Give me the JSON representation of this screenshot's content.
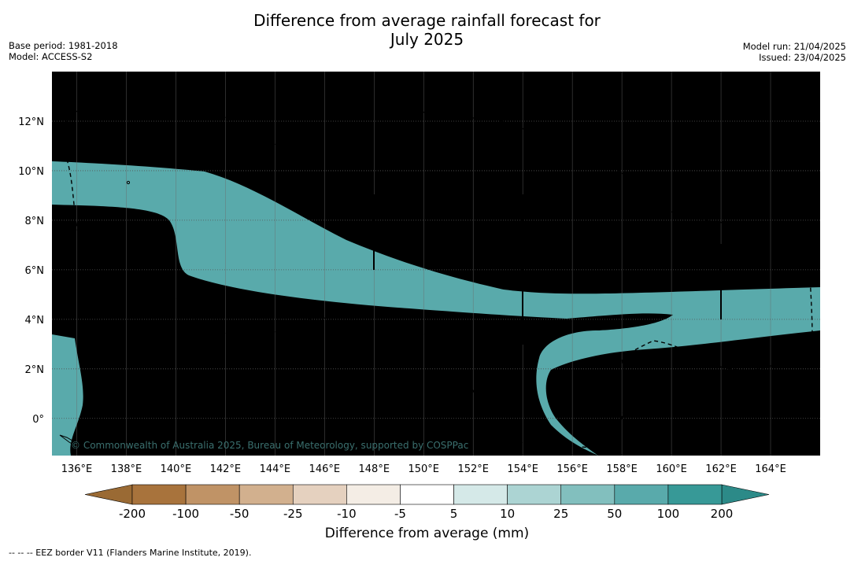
{
  "title": {
    "line1": "Difference from average rainfall forecast for",
    "line2": "July 2025"
  },
  "meta_left": {
    "base_period": "Base period: 1981-2018",
    "model": "Model: ACCESS-S2"
  },
  "meta_right": {
    "model_run": "Model run: 21/04/2025",
    "issued": "Issued: 23/04/2025"
  },
  "map": {
    "longitude_range": [
      135,
      166
    ],
    "latitude_range": [
      -1.5,
      14
    ],
    "longitude_labels": [
      "136°E",
      "138°E",
      "140°E",
      "142°E",
      "144°E",
      "146°E",
      "148°E",
      "150°E",
      "152°E",
      "154°E",
      "156°E",
      "158°E",
      "160°E",
      "162°E",
      "164°E"
    ],
    "latitude_labels": [
      "12°N",
      "10°N",
      "8°N",
      "6°N",
      "4°N",
      "2°N",
      "0°"
    ],
    "copyright": "© Commonwealth of Australia 2025, Bureau of Meteorology, supported by COSPPac"
  },
  "colorbar": {
    "label": "Difference from average (mm)",
    "ticks": [
      "-200",
      "-100",
      "-50",
      "-25",
      "-10",
      "-5",
      "5",
      "10",
      "25",
      "50",
      "100",
      "200"
    ],
    "colors": [
      "#a8733c",
      "#c09366",
      "#d2b08e",
      "#e5d1bf",
      "#f4ede5",
      "#ffffff",
      "#d5e9e8",
      "#acd4d3",
      "#82bfbe",
      "#59aaab",
      "#379997"
    ],
    "under_color": "#9a6a34",
    "over_color": "#2c8a88"
  },
  "footnote": "--  --  -- EEZ border V11 (Flanders Marine Institute, 2019)."
}
